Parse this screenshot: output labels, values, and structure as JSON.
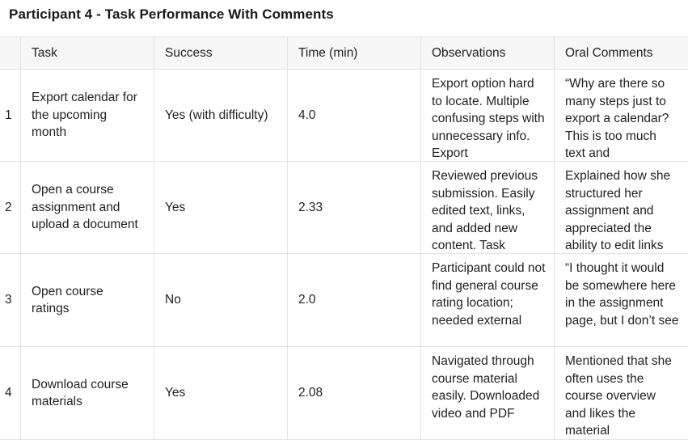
{
  "title": "Participant 4 - Task Performance With Comments",
  "columns": {
    "task": "Task",
    "success": "Success",
    "time": "Time (min)",
    "observations": "Observations",
    "comments": "Oral Comments"
  },
  "rows": [
    {
      "num": "1",
      "task": "Export calendar for the upcoming month",
      "success": "Yes (with difficulty)",
      "time": "4.0",
      "observations": "Export option hard to locate. Multiple confusing steps with unnecessary info. Export",
      "comments": "“Why are there so many steps just to export a calendar? This is too much text and"
    },
    {
      "num": "2",
      "task": "Open a course assignment and upload a document",
      "success": "Yes",
      "time": "2.33",
      "observations": "Reviewed previous submission. Easily edited text, links, and added new content. Task",
      "comments": "Explained how she structured her assignment and appreciated the ability to edit links"
    },
    {
      "num": "3",
      "task": "Open course ratings",
      "success": "No",
      "time": "2.0",
      "observations": "Participant could not find general course rating location; needed external",
      "comments": "“I thought it would be somewhere here in the assignment page, but I don’t see"
    },
    {
      "num": "4",
      "task": "Download course materials",
      "success": "Yes",
      "time": "2.08",
      "observations": "Navigated through course material easily. Downloaded video and PDF",
      "comments": "Mentioned that she often uses the course overview and likes the material"
    }
  ]
}
